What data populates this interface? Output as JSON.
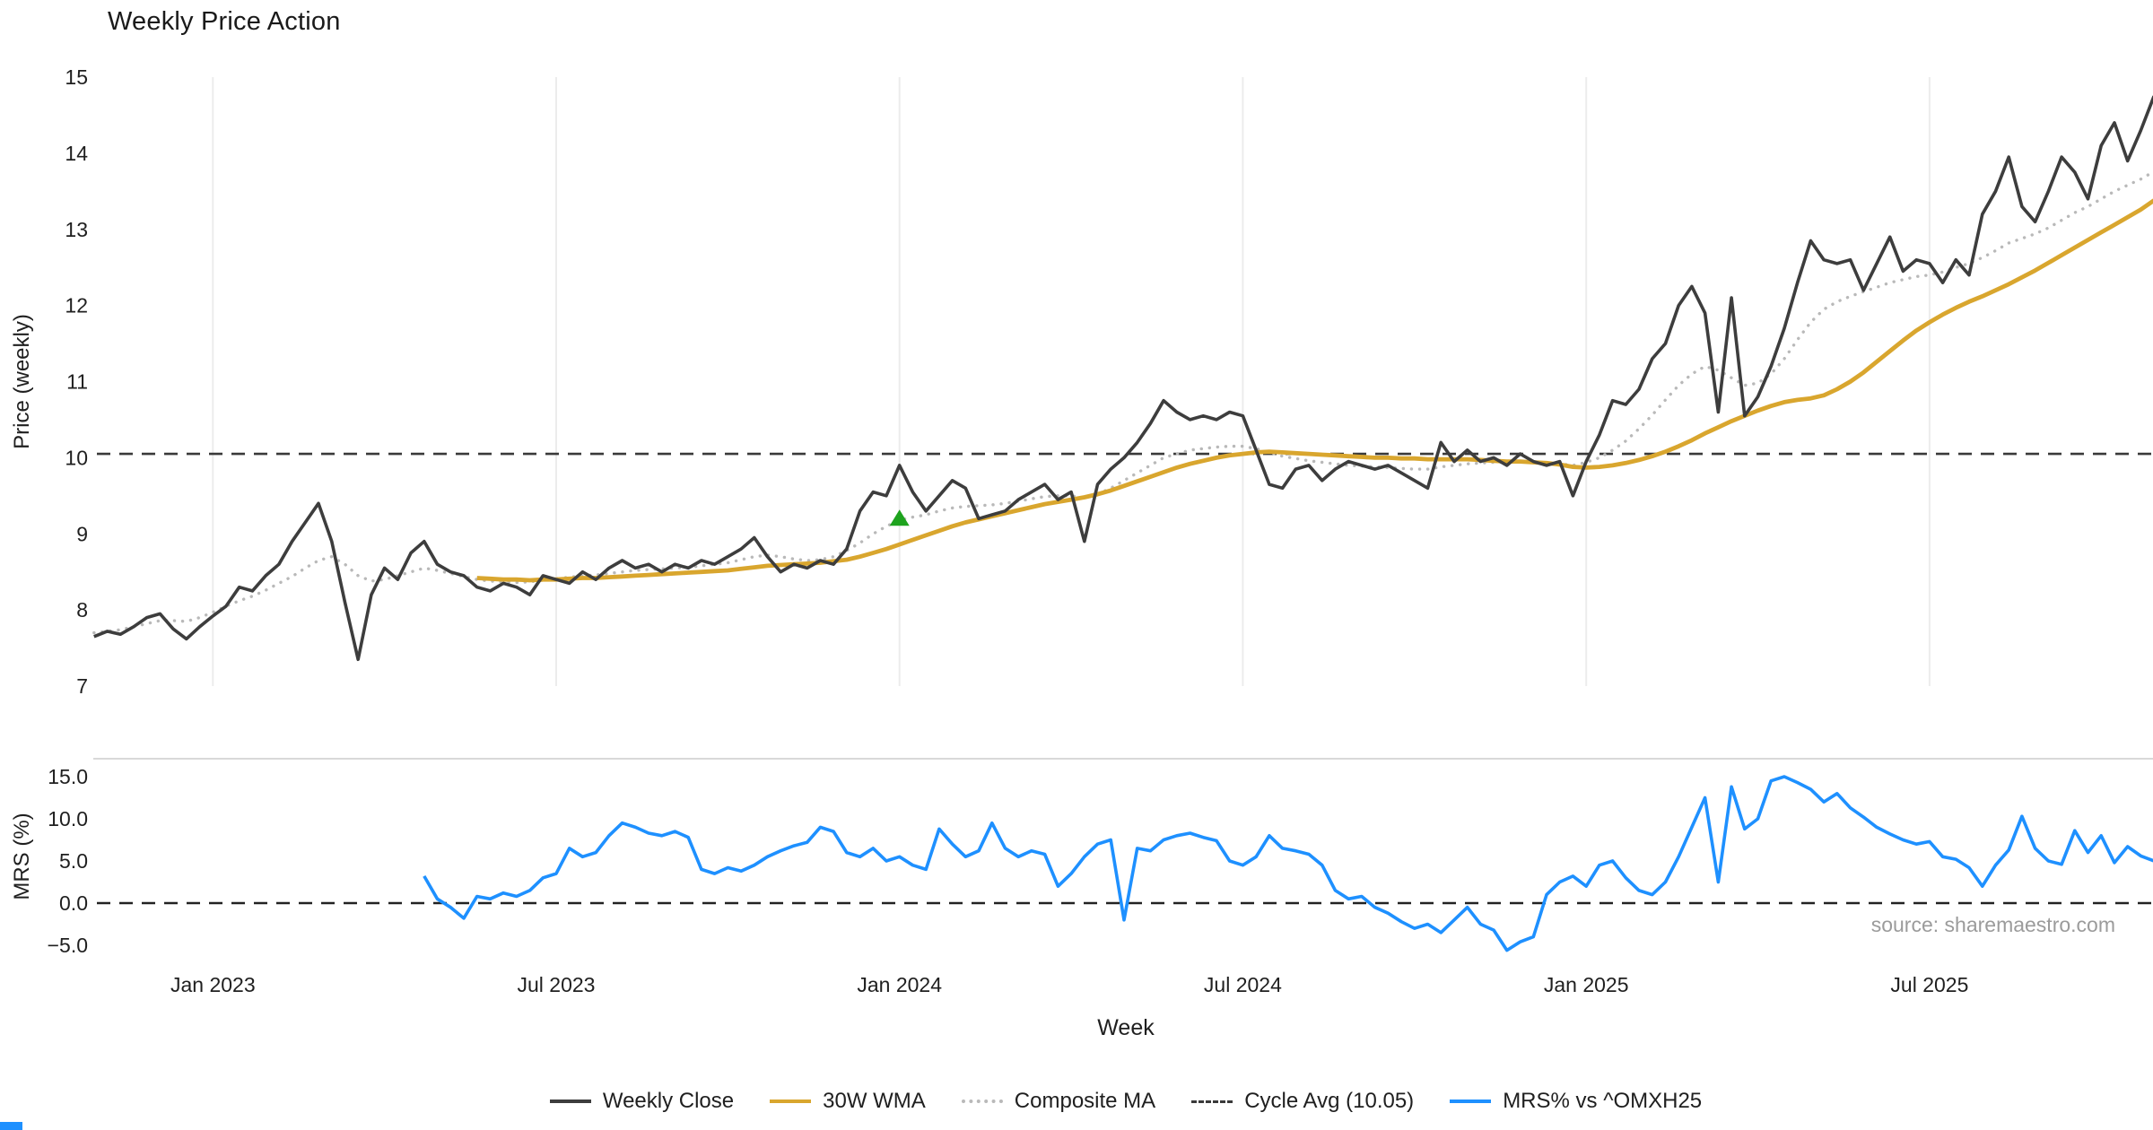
{
  "title": "Weekly Price Action",
  "source_note": "source: sharemaestro.com",
  "colors": {
    "weekly_close": "#3d3d3d",
    "wma_30": "#d9a62e",
    "composite_ma": "#b9b9b9",
    "cycle_avg": "#3a3a3a",
    "mrs": "#1e90ff",
    "signal_marker": "#1ea31e",
    "gridline": "#ececec",
    "tick_text": "#1f1f1f",
    "source_text": "#9b9b9b"
  },
  "chart_data": {
    "type": "line",
    "title": "Weekly Price Action",
    "xlabel": "Week",
    "x_unit": "week_index",
    "x_range_weeks": [
      0,
      156
    ],
    "x_tick_weeks": [
      9,
      35,
      61,
      87,
      113,
      139
    ],
    "x_tick_labels": [
      "Jan 2023",
      "Jul 2023",
      "Jan 2024",
      "Jul 2024",
      "Jan 2025",
      "Jul 2025"
    ],
    "grid": "vertical-light-top-panel-only",
    "legend_position": "bottom-center",
    "panels": [
      {
        "name": "price",
        "ylabel": "Price (weekly)",
        "ylim": [
          7,
          15
        ],
        "yticks": [
          [
            7,
            "7"
          ],
          [
            8,
            "8"
          ],
          [
            9,
            "9"
          ],
          [
            10,
            "10"
          ],
          [
            11,
            "11"
          ],
          [
            12,
            "12"
          ],
          [
            13,
            "13"
          ],
          [
            14,
            "14"
          ],
          [
            15,
            "15"
          ]
        ],
        "reference_line": {
          "label": "Cycle Avg (10.05)",
          "value": 10.05,
          "style": "dashed",
          "color": "#3a3a3a"
        },
        "markers": [
          {
            "shape": "triangle-up",
            "color": "#1ea31e",
            "week_index": 61,
            "value": 9.2
          }
        ],
        "series": [
          {
            "name": "Weekly Close",
            "color": "#3d3d3d",
            "style": "solid",
            "values": [
              7.65,
              7.72,
              7.68,
              7.78,
              7.9,
              7.95,
              7.75,
              7.62,
              7.78,
              7.92,
              8.05,
              8.3,
              8.25,
              8.45,
              8.6,
              8.9,
              9.15,
              9.4,
              8.9,
              8.1,
              7.35,
              8.2,
              8.55,
              8.4,
              8.75,
              8.9,
              8.6,
              8.5,
              8.45,
              8.3,
              8.25,
              8.35,
              8.3,
              8.2,
              8.45,
              8.4,
              8.35,
              8.5,
              8.4,
              8.55,
              8.65,
              8.55,
              8.6,
              8.5,
              8.6,
              8.55,
              8.65,
              8.6,
              8.7,
              8.8,
              8.95,
              8.7,
              8.5,
              8.6,
              8.55,
              8.65,
              8.6,
              8.8,
              9.3,
              9.55,
              9.5,
              9.9,
              9.55,
              9.3,
              9.5,
              9.7,
              9.6,
              9.2,
              9.25,
              9.3,
              9.45,
              9.55,
              9.65,
              9.45,
              9.55,
              8.9,
              9.65,
              9.85,
              10.0,
              10.2,
              10.45,
              10.75,
              10.6,
              10.5,
              10.55,
              10.5,
              10.6,
              10.55,
              10.1,
              9.65,
              9.6,
              9.85,
              9.9,
              9.7,
              9.85,
              9.95,
              9.9,
              9.85,
              9.9,
              9.8,
              9.7,
              9.6,
              10.2,
              9.95,
              10.1,
              9.95,
              10.0,
              9.9,
              10.05,
              9.95,
              9.9,
              9.95,
              9.5,
              9.95,
              10.3,
              10.75,
              10.7,
              10.9,
              11.3,
              11.5,
              12.0,
              12.25,
              11.9,
              10.6,
              12.1,
              10.55,
              10.8,
              11.2,
              11.7,
              12.3,
              12.85,
              12.6,
              12.55,
              12.6,
              12.2,
              12.55,
              12.9,
              12.45,
              12.6,
              12.55,
              12.3,
              12.6,
              12.4,
              13.2,
              13.5,
              13.95,
              13.3,
              13.1,
              13.5,
              13.95,
              13.75,
              13.4,
              14.1,
              14.4,
              13.9,
              14.3,
              14.75
            ]
          },
          {
            "name": "30W WMA",
            "color": "#d9a62e",
            "style": "solid",
            "values": [
              null,
              null,
              null,
              null,
              null,
              null,
              null,
              null,
              null,
              null,
              null,
              null,
              null,
              null,
              null,
              null,
              null,
              null,
              null,
              null,
              null,
              null,
              null,
              null,
              null,
              null,
              null,
              null,
              null,
              8.42,
              8.41,
              8.4,
              8.4,
              8.39,
              8.4,
              8.4,
              8.41,
              8.42,
              8.42,
              8.43,
              8.44,
              8.45,
              8.46,
              8.47,
              8.48,
              8.49,
              8.5,
              8.51,
              8.52,
              8.54,
              8.56,
              8.58,
              8.59,
              8.6,
              8.61,
              8.62,
              8.64,
              8.66,
              8.7,
              8.75,
              8.8,
              8.86,
              8.92,
              8.98,
              9.04,
              9.1,
              9.15,
              9.19,
              9.23,
              9.27,
              9.31,
              9.35,
              9.39,
              9.42,
              9.45,
              9.48,
              9.52,
              9.57,
              9.63,
              9.69,
              9.75,
              9.81,
              9.87,
              9.92,
              9.96,
              10.0,
              10.03,
              10.05,
              10.07,
              10.08,
              10.07,
              10.06,
              10.05,
              10.04,
              10.03,
              10.02,
              10.01,
              10.0,
              10.0,
              9.99,
              9.99,
              9.98,
              9.98,
              9.98,
              9.98,
              9.97,
              9.96,
              9.95,
              9.95,
              9.94,
              9.93,
              9.91,
              9.88,
              9.87,
              9.88,
              9.9,
              9.93,
              9.97,
              10.02,
              10.08,
              10.15,
              10.23,
              10.32,
              10.4,
              10.48,
              10.55,
              10.62,
              10.68,
              10.73,
              10.76,
              10.78,
              10.82,
              10.9,
              11.0,
              11.12,
              11.26,
              11.4,
              11.54,
              11.67,
              11.78,
              11.88,
              11.97,
              12.05,
              12.12,
              12.2,
              12.28,
              12.37,
              12.46,
              12.56,
              12.66,
              12.76,
              12.86,
              12.96,
              13.06,
              13.16,
              13.26,
              13.38
            ]
          },
          {
            "name": "Composite MA",
            "color": "#b9b9b9",
            "style": "dotted",
            "values": [
              7.7,
              7.72,
              7.74,
              7.78,
              7.82,
              7.86,
              7.86,
              7.85,
              7.9,
              7.97,
              8.05,
              8.12,
              8.18,
              8.26,
              8.35,
              8.44,
              8.55,
              8.65,
              8.7,
              8.6,
              8.45,
              8.38,
              8.4,
              8.45,
              8.5,
              8.55,
              8.52,
              8.48,
              8.44,
              8.4,
              8.38,
              8.37,
              8.36,
              8.37,
              8.39,
              8.41,
              8.43,
              8.45,
              8.46,
              8.48,
              8.5,
              8.52,
              8.53,
              8.54,
              8.55,
              8.56,
              8.58,
              8.6,
              8.62,
              8.66,
              8.7,
              8.72,
              8.7,
              8.67,
              8.65,
              8.66,
              8.7,
              8.78,
              8.88,
              9.0,
              9.1,
              9.18,
              9.22,
              9.25,
              9.3,
              9.34,
              9.36,
              9.37,
              9.38,
              9.4,
              9.43,
              9.46,
              9.49,
              9.5,
              9.5,
              9.47,
              9.52,
              9.6,
              9.7,
              9.8,
              9.9,
              10.0,
              10.05,
              10.1,
              10.12,
              10.14,
              10.15,
              10.15,
              10.12,
              10.07,
              10.02,
              9.99,
              9.96,
              9.94,
              9.92,
              9.9,
              9.89,
              9.88,
              9.87,
              9.86,
              9.85,
              9.85,
              9.88,
              9.9,
              9.92,
              9.93,
              9.94,
              9.94,
              9.95,
              9.94,
              9.93,
              9.92,
              9.9,
              9.94,
              10.0,
              10.1,
              10.22,
              10.38,
              10.56,
              10.76,
              10.95,
              11.1,
              11.2,
              11.15,
              11.05,
              10.95,
              10.98,
              11.1,
              11.3,
              11.55,
              11.78,
              11.95,
              12.05,
              12.12,
              12.18,
              12.24,
              12.3,
              12.34,
              12.38,
              12.4,
              12.44,
              12.5,
              12.55,
              12.63,
              12.72,
              12.82,
              12.88,
              12.94,
              13.02,
              13.12,
              13.22,
              13.3,
              13.4,
              13.5,
              13.58,
              13.66,
              13.76
            ]
          }
        ]
      },
      {
        "name": "mrs",
        "ylabel": "MRS (%)",
        "ylim": [
          -7,
          16.5
        ],
        "yticks": [
          [
            -5,
            "−5.0"
          ],
          [
            0,
            "0.0"
          ],
          [
            5,
            "5.0"
          ],
          [
            10,
            "10.0"
          ],
          [
            15,
            "15.0"
          ]
        ],
        "reference_line": {
          "label": "zero-line",
          "value": 0,
          "style": "dashed",
          "color": "#222222"
        },
        "series": [
          {
            "name": "MRS% vs ^OMXH25",
            "color": "#1e90ff",
            "style": "solid",
            "values": [
              null,
              null,
              null,
              null,
              null,
              null,
              null,
              null,
              null,
              null,
              null,
              null,
              null,
              null,
              null,
              null,
              null,
              null,
              null,
              null,
              null,
              null,
              null,
              null,
              null,
              3.2,
              0.5,
              -0.5,
              -1.8,
              0.8,
              0.5,
              1.2,
              0.8,
              1.5,
              3.0,
              3.5,
              6.5,
              5.5,
              6.0,
              8.0,
              9.5,
              9.0,
              8.3,
              8.0,
              8.5,
              7.8,
              4.0,
              3.5,
              4.2,
              3.8,
              4.5,
              5.5,
              6.2,
              6.8,
              7.2,
              9.0,
              8.5,
              6.0,
              5.5,
              6.5,
              5.0,
              5.5,
              4.5,
              4.0,
              8.8,
              7.0,
              5.5,
              6.2,
              9.5,
              6.5,
              5.5,
              6.2,
              5.8,
              2.0,
              3.5,
              5.5,
              7.0,
              7.5,
              -2.0,
              6.5,
              6.2,
              7.5,
              8.0,
              8.3,
              7.8,
              7.4,
              5.0,
              4.5,
              5.5,
              8.0,
              6.5,
              6.2,
              5.8,
              4.5,
              1.5,
              0.5,
              0.8,
              -0.5,
              -1.2,
              -2.2,
              -3.0,
              -2.5,
              -3.5,
              -2.0,
              -0.5,
              -2.5,
              -3.2,
              -5.6,
              -4.6,
              -4.0,
              1.0,
              2.5,
              3.2,
              2.0,
              4.5,
              5.0,
              3.0,
              1.5,
              1.0,
              2.5,
              5.5,
              9.0,
              12.5,
              2.5,
              13.8,
              8.8,
              10.0,
              14.5,
              15.0,
              14.3,
              13.5,
              12.0,
              13.0,
              11.3,
              10.2,
              9.0,
              8.2,
              7.5,
              7.0,
              7.3,
              5.5,
              5.2,
              4.2,
              2.0,
              4.5,
              6.3,
              10.3,
              6.5,
              5.0,
              4.6,
              8.6,
              6.0,
              8.0,
              4.8,
              6.7,
              5.6,
              5.0
            ]
          }
        ]
      }
    ],
    "legend": [
      {
        "label": "Weekly Close",
        "color": "#3d3d3d",
        "style": "solid"
      },
      {
        "label": "30W WMA",
        "color": "#d9a62e",
        "style": "solid"
      },
      {
        "label": "Composite MA",
        "color": "#b9b9b9",
        "style": "dotted"
      },
      {
        "label": "Cycle Avg (10.05)",
        "color": "#3a3a3a",
        "style": "dashed"
      },
      {
        "label": "MRS% vs ^OMXH25",
        "color": "#1e90ff",
        "style": "solid"
      }
    ]
  }
}
